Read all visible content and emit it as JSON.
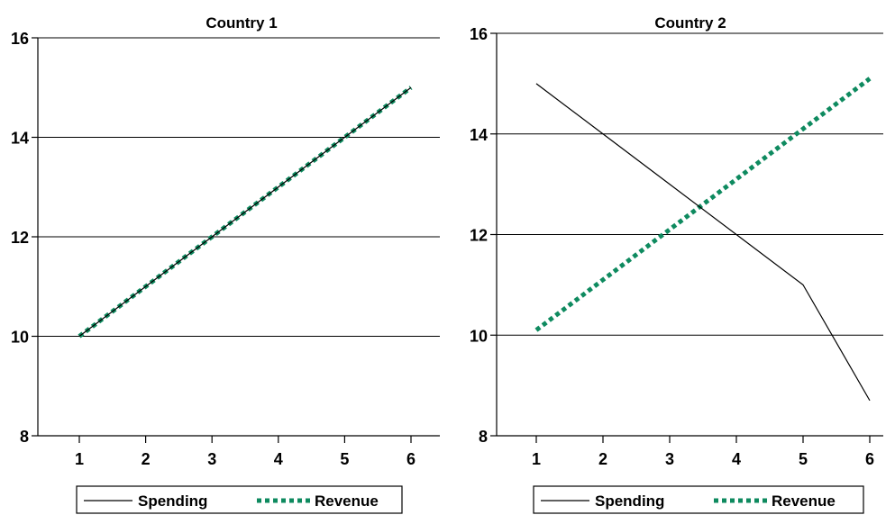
{
  "chart_data": [
    {
      "type": "line",
      "title": "Country 1",
      "x": [
        1,
        2,
        3,
        4,
        5,
        6
      ],
      "x_tick_labels": [
        "1",
        "2",
        "3",
        "4",
        "5",
        "6"
      ],
      "ylim": [
        8,
        16
      ],
      "y_ticks": [
        8,
        10,
        12,
        14,
        16
      ],
      "grid": "horizontal",
      "legend_position": "bottom",
      "series": [
        {
          "name": "Spending",
          "values": [
            10,
            11,
            12,
            13,
            14,
            15
          ],
          "color": "#000000",
          "style": "solid"
        },
        {
          "name": "Revenue",
          "values": [
            10,
            11,
            12,
            13,
            14,
            15
          ],
          "color": "#0e8a5f",
          "style": "dotted"
        }
      ]
    },
    {
      "type": "line",
      "title": "Country 2",
      "x": [
        1,
        2,
        3,
        4,
        5,
        6
      ],
      "x_tick_labels": [
        "1",
        "2",
        "3",
        "4",
        "5",
        "6"
      ],
      "ylim": [
        8,
        16
      ],
      "y_ticks": [
        8,
        10,
        12,
        14,
        16
      ],
      "grid": "horizontal",
      "legend_position": "bottom",
      "series": [
        {
          "name": "Spending",
          "values": [
            15,
            14,
            13,
            12,
            11,
            8.7
          ],
          "color": "#000000",
          "style": "solid"
        },
        {
          "name": "Revenue",
          "values": [
            10.1,
            11.1,
            12.1,
            13.1,
            14.1,
            15.1
          ],
          "color": "#0e8a5f",
          "style": "dotted"
        }
      ]
    }
  ]
}
